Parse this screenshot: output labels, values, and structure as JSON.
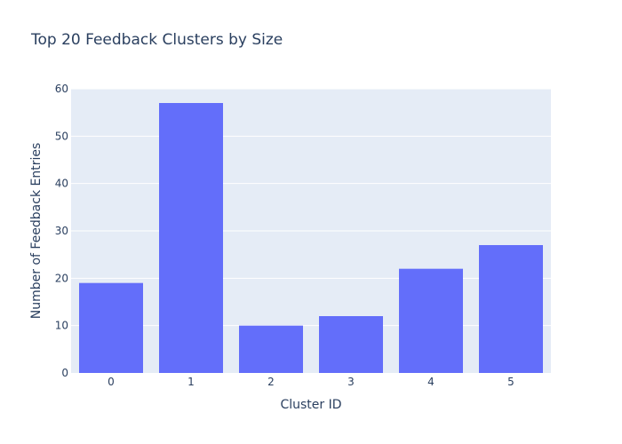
{
  "chart_data": {
    "type": "bar",
    "title": "Top 20 Feedback Clusters by Size",
    "xlabel": "Cluster ID",
    "ylabel": "Number of Feedback Entries",
    "categories": [
      "0",
      "1",
      "2",
      "3",
      "4",
      "5"
    ],
    "values": [
      19,
      57,
      10,
      12,
      22,
      27
    ],
    "ylim": [
      0,
      60
    ],
    "yticks": [
      "0",
      "10",
      "20",
      "30",
      "40",
      "50",
      "60"
    ],
    "grid": true,
    "colors": {
      "bar": "#636efa",
      "plot_background": "#e5ecf6",
      "grid": "#ffffff",
      "text": "#2a3f5f"
    }
  }
}
